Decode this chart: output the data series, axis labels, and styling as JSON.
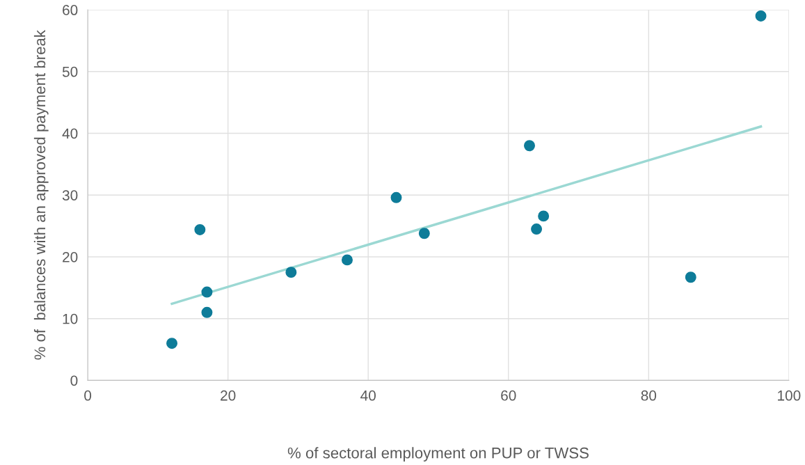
{
  "chart_data": {
    "type": "scatter",
    "xlabel": "% of sectoral employment on PUP or TWSS",
    "ylabel": "% of  balances with an approved payment break",
    "xlim": [
      0,
      100
    ],
    "xticks": [
      0,
      20,
      40,
      60,
      80,
      100
    ],
    "ylim": [
      0,
      60
    ],
    "yticks": [
      0,
      10,
      20,
      30,
      40,
      50,
      60
    ],
    "grid": true,
    "series": [
      {
        "marker": "circle",
        "color": "#0e7c99",
        "x": [
          12,
          16,
          17,
          17,
          29,
          37,
          44,
          48,
          63,
          64,
          65,
          86,
          96
        ],
        "values": [
          6.0,
          24.4,
          14.3,
          11.0,
          17.5,
          19.5,
          29.6,
          23.8,
          38.0,
          24.5,
          26.6,
          16.7,
          59.0
        ]
      },
      {
        "type": "line",
        "marker": "none",
        "color": "#9bd8d3",
        "x": [
          12,
          96
        ],
        "values": [
          12.4,
          41.1
        ]
      }
    ]
  }
}
